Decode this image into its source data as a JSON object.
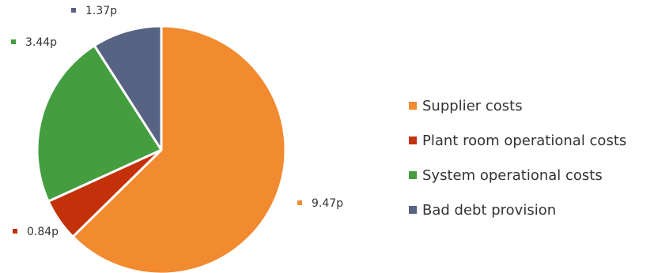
{
  "chart_data": {
    "type": "pie",
    "unit": "p",
    "slices": [
      {
        "label": "Supplier costs",
        "value": 9.47,
        "value_label": "9.47p",
        "color": "#F28A30"
      },
      {
        "label": "Plant room operational costs",
        "value": 0.84,
        "value_label": "0.84p",
        "color": "#C3310A"
      },
      {
        "label": "System operational costs",
        "value": 3.44,
        "value_label": "3.44p",
        "color": "#449D3F"
      },
      {
        "label": "Bad debt provision",
        "value": 1.37,
        "value_label": "1.37p",
        "color": "#566383"
      }
    ],
    "start_angle_deg": 0,
    "direction": "clockwise",
    "slice_border_color": "#ffffff",
    "legend_position": "right",
    "data_labels": "outside-with-square-markers"
  }
}
